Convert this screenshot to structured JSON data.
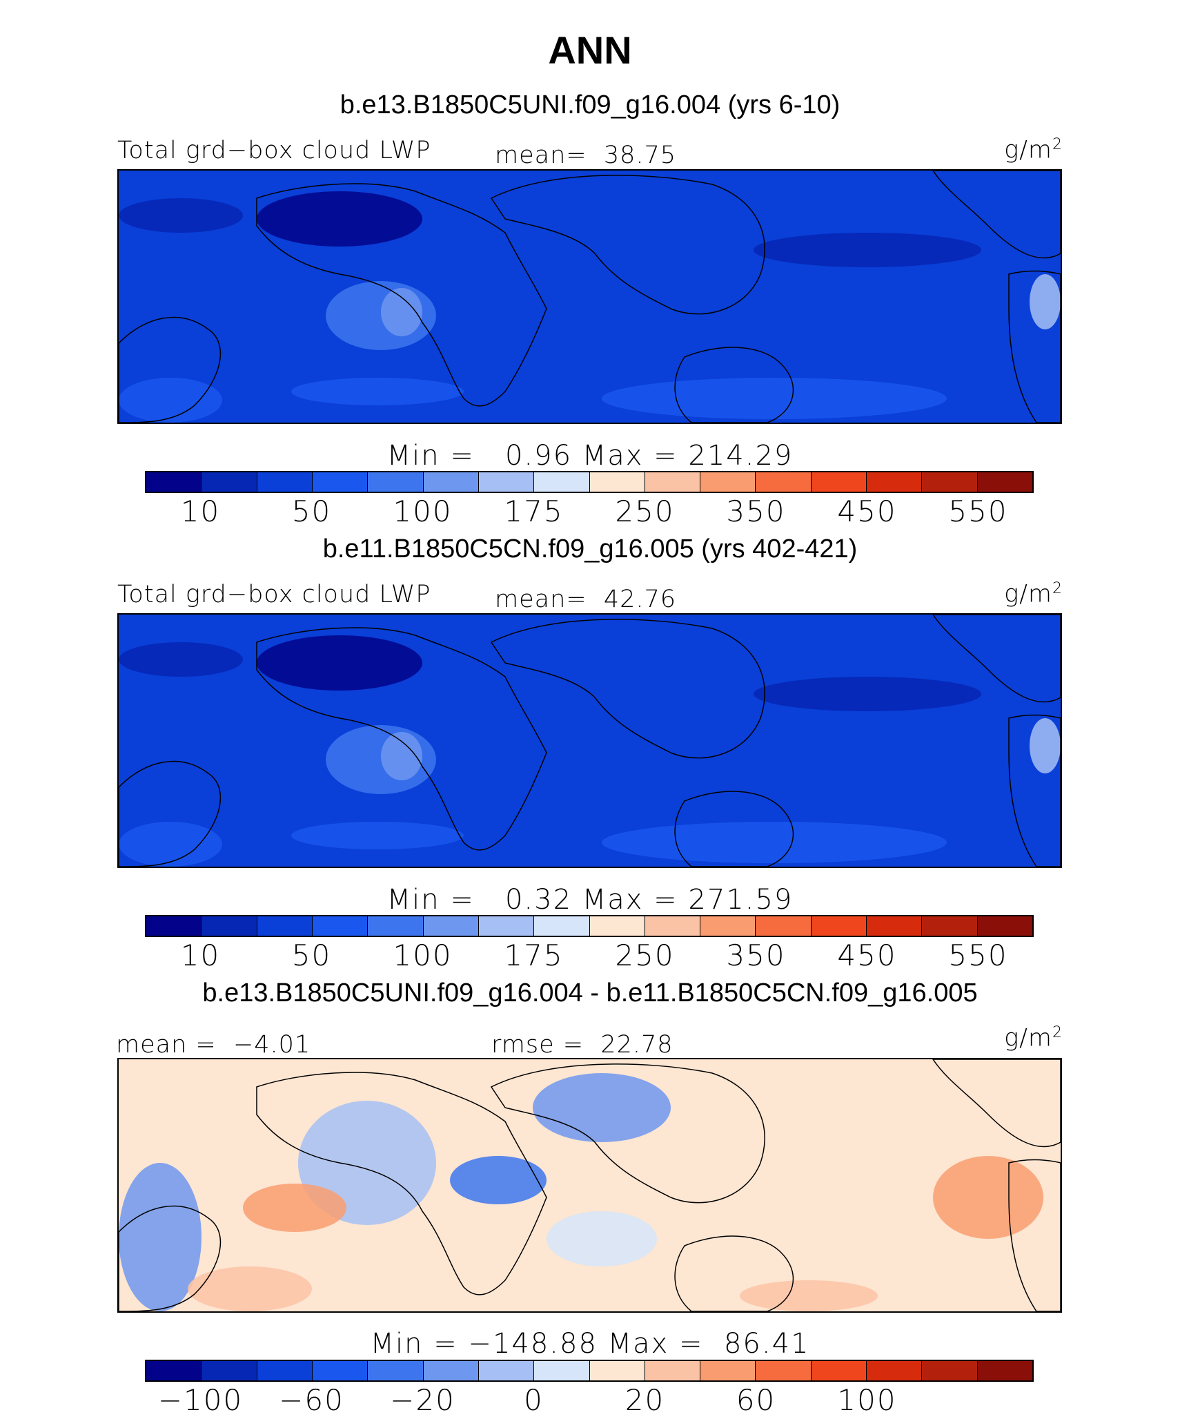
{
  "title": "ANN",
  "panels": [
    {
      "case": "b.e13.B1850C5UNI.f09_g16.004 (yrs 6-10)",
      "left_label": "Total grd−box cloud LWP",
      "center_label": "mean=  38.75",
      "units_base": "g/m",
      "units_exp": "2",
      "minmax": "Min =   0.96 Max = 214.29",
      "palette": "abs",
      "ticks": [
        "10",
        "50",
        "100",
        "175",
        "250",
        "350",
        "450",
        "550"
      ]
    },
    {
      "case": "b.e11.B1850C5CN.f09_g16.005 (yrs 402-421)",
      "left_label": "Total grd−box cloud LWP",
      "center_label": "mean=  42.76",
      "units_base": "g/m",
      "units_exp": "2",
      "minmax": "Min =   0.32 Max = 271.59",
      "palette": "abs",
      "ticks": [
        "10",
        "50",
        "100",
        "175",
        "250",
        "350",
        "450",
        "550"
      ]
    },
    {
      "case": "b.e13.B1850C5UNI.f09_g16.004 - b.e11.B1850C5CN.f09_g16.005",
      "left_label": "mean =  −4.01",
      "center_label": "rmse =  22.78",
      "units_base": "g/m",
      "units_exp": "2",
      "minmax": "Min = −148.88 Max =  86.41",
      "palette": "diff",
      "ticks": [
        "−100",
        "−60",
        "−20",
        "0",
        "20",
        "60",
        "100"
      ]
    }
  ],
  "colorbar_colors": [
    "#02038a",
    "#0626b4",
    "#0a3fd8",
    "#1a57ef",
    "#3d75ee",
    "#6e97f0",
    "#a6bff4",
    "#d6e5fa",
    "#fde6d2",
    "#fbc3a6",
    "#f99d71",
    "#f76c3e",
    "#f0461e",
    "#d62b0c",
    "#b3200c",
    "#8a0f08"
  ]
}
